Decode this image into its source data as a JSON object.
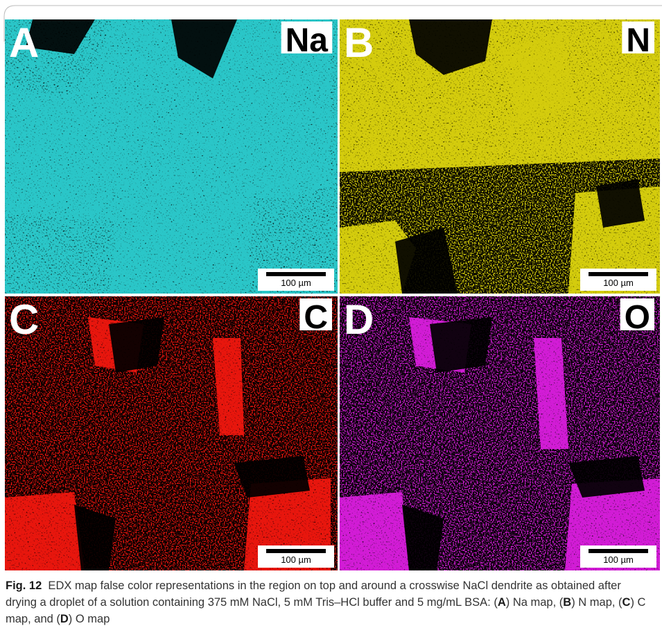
{
  "figure": {
    "panels": [
      {
        "letter": "A",
        "element": "Na",
        "scale_bar": "100 µm",
        "color": "#2cc6c8"
      },
      {
        "letter": "B",
        "element": "N",
        "scale_bar": "100 µm",
        "color": "#d4cc0a"
      },
      {
        "letter": "C",
        "element": "C",
        "scale_bar": "100 µm",
        "color": "#e8140e"
      },
      {
        "letter": "D",
        "element": "O",
        "scale_bar": "100 µm",
        "color": "#d21ed6"
      }
    ],
    "caption": [
      {
        "text": "Fig. 12",
        "bold": true
      },
      {
        "text": "  EDX map false color representations in the region on top and around a crosswise NaCl dendrite as obtained after drying a droplet of a solution containing 375 mM NaCl, 5 mM Tris–HCl buffer and 5 mg/mL BSA: ("
      },
      {
        "text": "A",
        "bold": true
      },
      {
        "text": ") Na map, ("
      },
      {
        "text": "B",
        "bold": true
      },
      {
        "text": ") N map, ("
      },
      {
        "text": "C",
        "bold": true
      },
      {
        "text": ") C map, and ("
      },
      {
        "text": "D",
        "bold": true
      },
      {
        "text": ") O map"
      }
    ]
  }
}
